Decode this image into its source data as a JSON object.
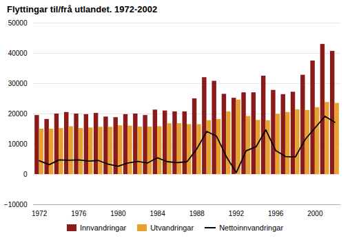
{
  "chart_data": {
    "type": "bar",
    "title": "Flyttingar til/frå utlandet. 1972-2002",
    "categories": [
      "1972",
      null,
      null,
      null,
      "1976",
      null,
      null,
      null,
      "1980",
      null,
      null,
      null,
      "1984",
      null,
      null,
      null,
      "1988",
      null,
      null,
      null,
      "1992",
      null,
      null,
      null,
      "1996",
      null,
      null,
      null,
      "2000",
      null,
      null
    ],
    "series": [
      {
        "name": "Innvandringar",
        "type": "bar",
        "color": "#8B1A1A",
        "values": [
          19500,
          18200,
          20000,
          20500,
          20000,
          19800,
          20200,
          19000,
          18800,
          19800,
          20000,
          19500,
          21300,
          21000,
          20700,
          20700,
          25000,
          32000,
          30800,
          26500,
          25200,
          27000,
          27000,
          32500,
          27800,
          26400,
          27200,
          32800,
          37500,
          43000,
          40700
        ]
      },
      {
        "name": "Utvandringar",
        "type": "bar",
        "color": "#E8A030",
        "values": [
          15000,
          15000,
          15200,
          15800,
          15200,
          15400,
          15600,
          15600,
          16100,
          16000,
          15700,
          15700,
          15800,
          16800,
          16800,
          16500,
          16500,
          17800,
          18200,
          20700,
          24600,
          19200,
          17900,
          17800,
          19900,
          20500,
          21400,
          21200,
          22100,
          23800,
          23500
        ]
      },
      {
        "name": "Nettoinnvandringar",
        "type": "line",
        "color": "#000000",
        "values": [
          4500,
          3200,
          4800,
          4700,
          4800,
          4400,
          4600,
          3400,
          2700,
          3800,
          4300,
          3800,
          5500,
          4200,
          3900,
          4200,
          8500,
          14200,
          12600,
          5800,
          600,
          7800,
          9100,
          14700,
          7900,
          5900,
          5800,
          11600,
          15400,
          19200,
          17200
        ]
      }
    ],
    "ylim": [
      -10000,
      50000
    ],
    "yticks": [
      -10000,
      0,
      10000,
      20000,
      30000,
      40000,
      50000
    ],
    "grid": true,
    "legend": "bottom"
  }
}
